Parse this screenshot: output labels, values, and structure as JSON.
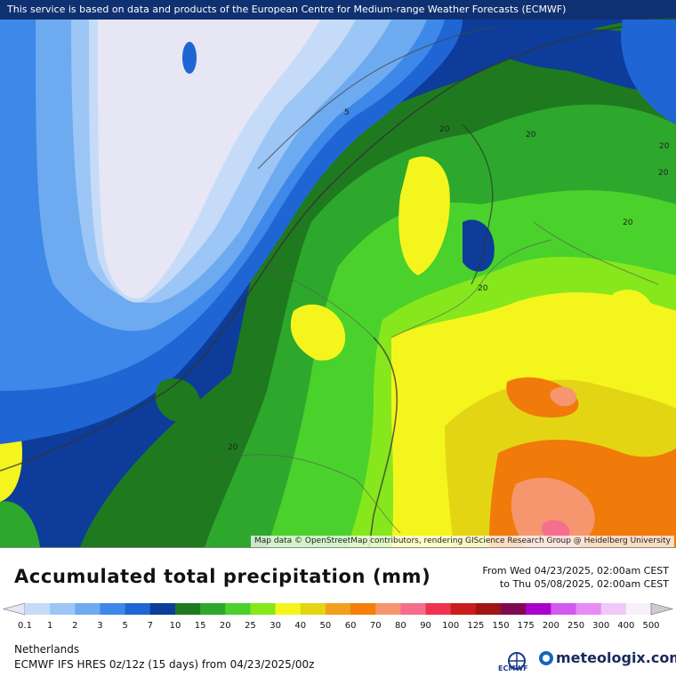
{
  "banner": "This service is based on data and products of the European Centre for Medium-range Weather Forecasts (ECMWF)",
  "map_attribution": "Map data © OpenStreetMap contributors, rendering GIScience Research Group @ Heidelberg University",
  "title": "Accumulated total precipitation (mm)",
  "period": {
    "from": "From Wed 04/23/2025, 02:00am CEST",
    "to": "to Thu 05/08/2025, 02:00am CEST"
  },
  "region": "Netherlands",
  "model": "ECMWF IFS HRES 0z/12z (15 days) from  04/23/2025/00z",
  "logos": {
    "ecmwf": "ECMWF",
    "meteologix": "meteologix.com"
  },
  "contour_labels": [
    "5",
    "20",
    "20",
    "20",
    "20",
    "20",
    "20",
    "20"
  ],
  "colorbar": {
    "ticks": [
      "0.1",
      "1",
      "2",
      "3",
      "5",
      "7",
      "10",
      "15",
      "20",
      "25",
      "30",
      "40",
      "50",
      "60",
      "70",
      "80",
      "90",
      "100",
      "125",
      "150",
      "175",
      "200",
      "250",
      "300",
      "400",
      "500"
    ],
    "colors": [
      "#e6e6f5",
      "#c6dbf7",
      "#9cc6f5",
      "#6eaaf0",
      "#3d88e8",
      "#1f66d4",
      "#0d3c9a",
      "#1f7a1f",
      "#2da82d",
      "#4bd12b",
      "#86e81c",
      "#f5f51e",
      "#e3d514",
      "#f0a01e",
      "#f57f0a",
      "#f5966e",
      "#f56e8c",
      "#f03250",
      "#c81e1e",
      "#a01414",
      "#800a50",
      "#aa00cc",
      "#d25af0",
      "#e68cf5",
      "#f0c8fa",
      "#f8f0fa",
      "#cccccc"
    ]
  }
}
